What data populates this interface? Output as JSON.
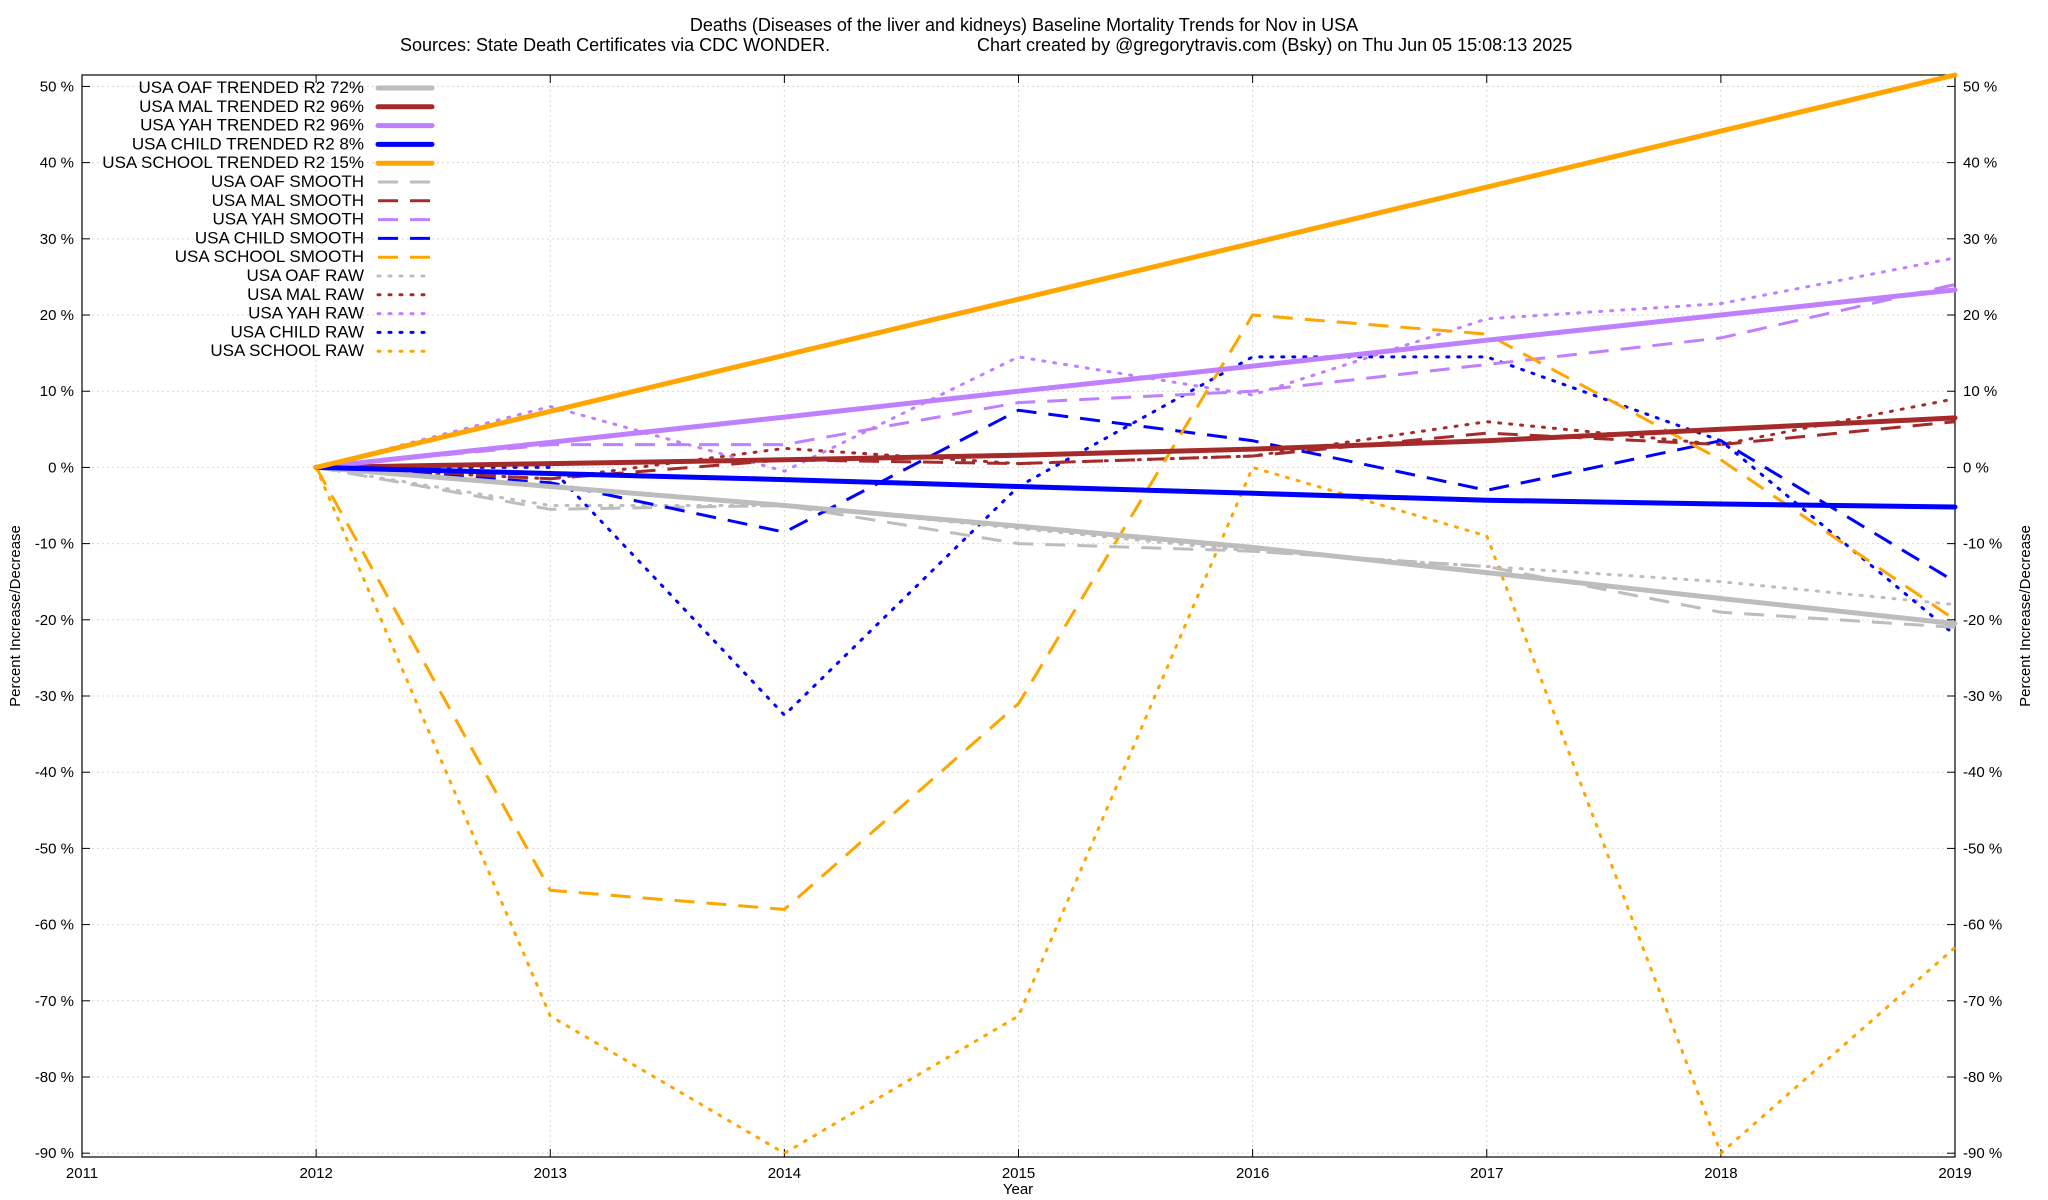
{
  "chart_data": {
    "type": "line",
    "title": "Deaths (Diseases of the liver and kidneys)  Baseline Mortality Trends for Nov in USA",
    "subtitle_left": "Sources: State Death Certificates via CDC WONDER.",
    "subtitle_right": "Chart created by @gregorytravis.com (Bsky) on Thu Jun 05 15:08:13 2025",
    "xlabel": "Year",
    "ylabel_left": "Percent Increase/Decrease",
    "ylabel_right": "Percent Increase/Decrease",
    "xlim": [
      2011,
      2019
    ],
    "ylim": [
      -91,
      52
    ],
    "x_ticks": [
      "2011",
      "2012",
      "2013",
      "2014",
      "2015",
      "2016",
      "2017",
      "2018",
      "2019"
    ],
    "y_ticks": [
      {
        "value": 50,
        "label": "50 %"
      },
      {
        "value": 40,
        "label": "40 %"
      },
      {
        "value": 30,
        "label": "30 %"
      },
      {
        "value": 20,
        "label": "20 %"
      },
      {
        "value": 10,
        "label": "10 %"
      },
      {
        "value": 0,
        "label": "0 %"
      },
      {
        "value": -10,
        "label": "-10 %"
      },
      {
        "value": -20,
        "label": "-20 %"
      },
      {
        "value": -30,
        "label": "-30 %"
      },
      {
        "value": -40,
        "label": "-40 %"
      },
      {
        "value": -50,
        "label": "-50 %"
      },
      {
        "value": -60,
        "label": "-60 %"
      },
      {
        "value": -70,
        "label": "-70 %"
      },
      {
        "value": -80,
        "label": "-80 %"
      },
      {
        "value": -90,
        "label": "-90 %"
      }
    ],
    "grid": true,
    "legend_position": "top-left",
    "series": [
      {
        "name": "USA OAF TRENDED R2  72%",
        "style": "solid",
        "color": "#bdbdbd",
        "x": [
          2012,
          2013,
          2014,
          2015,
          2016,
          2017,
          2018,
          2019
        ],
        "y": [
          0,
          -2.5,
          -5,
          -7.7,
          -10.5,
          -13.8,
          -17.2,
          -20.5
        ]
      },
      {
        "name": "USA MAL TRENDED R2  96%",
        "style": "solid",
        "color": "#a52a2a",
        "x": [
          2012,
          2013,
          2014,
          2015,
          2016,
          2017,
          2018,
          2019
        ],
        "y": [
          0,
          0.5,
          1,
          1.6,
          2.4,
          3.5,
          5,
          6.5
        ]
      },
      {
        "name": "USA YAH TRENDED R2  96%",
        "style": "solid",
        "color": "#bf7fff",
        "x": [
          2012,
          2013,
          2014,
          2015,
          2016,
          2017,
          2018,
          2019
        ],
        "y": [
          0,
          3.3,
          6.6,
          10,
          13.3,
          16.7,
          20,
          23.3
        ]
      },
      {
        "name": "USA CHILD TRENDED R2   8%",
        "style": "solid",
        "color": "#0000ff",
        "x": [
          2012,
          2013,
          2014,
          2015,
          2016,
          2017,
          2018,
          2019
        ],
        "y": [
          0,
          -0.8,
          -1.6,
          -2.5,
          -3.4,
          -4.3,
          -4.8,
          -5.2
        ]
      },
      {
        "name": "USA SCHOOL TRENDED R2  15%",
        "style": "solid",
        "color": "#ffa500",
        "x": [
          2012,
          2019
        ],
        "y": [
          0,
          51.5
        ]
      },
      {
        "name": "USA OAF SMOOTH",
        "style": "dashed",
        "color": "#bdbdbd",
        "x": [
          2012,
          2013,
          2014,
          2015,
          2016,
          2017,
          2018,
          2019
        ],
        "y": [
          0,
          -5.5,
          -5,
          -10,
          -11,
          -13,
          -19,
          -21
        ]
      },
      {
        "name": "USA MAL SMOOTH",
        "style": "dashed",
        "color": "#a52a2a",
        "x": [
          2012,
          2013,
          2014,
          2015,
          2016,
          2017,
          2018,
          2019
        ],
        "y": [
          0,
          -1.5,
          1,
          0.5,
          1.5,
          4.5,
          3,
          6
        ]
      },
      {
        "name": "USA YAH SMOOTH",
        "style": "dashed",
        "color": "#bf7fff",
        "x": [
          2012,
          2013,
          2014,
          2015,
          2016,
          2017,
          2018,
          2019
        ],
        "y": [
          0,
          3,
          3,
          8.5,
          10,
          13.5,
          17,
          24
        ]
      },
      {
        "name": "USA CHILD SMOOTH",
        "style": "dashed",
        "color": "#0000ff",
        "x": [
          2012,
          2013,
          2014,
          2015,
          2016,
          2017,
          2018,
          2019
        ],
        "y": [
          0,
          -2,
          -8.5,
          7.5,
          3.5,
          -3,
          3.5,
          -15
        ]
      },
      {
        "name": "USA SCHOOL SMOOTH",
        "style": "dashed",
        "color": "#ffa500",
        "x": [
          2012,
          2013,
          2014,
          2015,
          2016,
          2017,
          2018,
          2019
        ],
        "y": [
          0,
          -55.5,
          -58,
          -31,
          20,
          17.5,
          1,
          -20
        ]
      },
      {
        "name": "USA OAF RAW",
        "style": "dotted",
        "color": "#bdbdbd",
        "x": [
          2012,
          2013,
          2014,
          2015,
          2016,
          2017,
          2018,
          2019
        ],
        "y": [
          0,
          -5,
          -5,
          -8,
          -11,
          -13,
          -15,
          -18
        ]
      },
      {
        "name": "USA MAL RAW",
        "style": "dotted",
        "color": "#a52a2a",
        "x": [
          2012,
          2013,
          2014,
          2015,
          2016,
          2017,
          2018,
          2019
        ],
        "y": [
          0,
          -1.5,
          2.5,
          0.5,
          1.5,
          6,
          3,
          9
        ]
      },
      {
        "name": "USA YAH RAW",
        "style": "dotted",
        "color": "#bf7fff",
        "x": [
          2012,
          2013,
          2014,
          2015,
          2016,
          2017,
          2018,
          2019
        ],
        "y": [
          0,
          8,
          -0.5,
          14.5,
          9.5,
          19.5,
          21.5,
          27.5
        ]
      },
      {
        "name": "USA CHILD RAW",
        "style": "dotted",
        "color": "#0000ff",
        "x": [
          2012,
          2013,
          2014,
          2015,
          2016,
          2017,
          2018,
          2019
        ],
        "y": [
          0,
          0,
          -32.5,
          -2.5,
          14.5,
          14.5,
          3.5,
          -22
        ]
      },
      {
        "name": "USA SCHOOL RAW",
        "style": "dotted",
        "color": "#ffa500",
        "x": [
          2012,
          2013,
          2014,
          2015,
          2016,
          2017,
          2018,
          2019
        ],
        "y": [
          0,
          -72,
          -90,
          -72,
          0,
          -9,
          -90,
          -63
        ]
      }
    ]
  }
}
